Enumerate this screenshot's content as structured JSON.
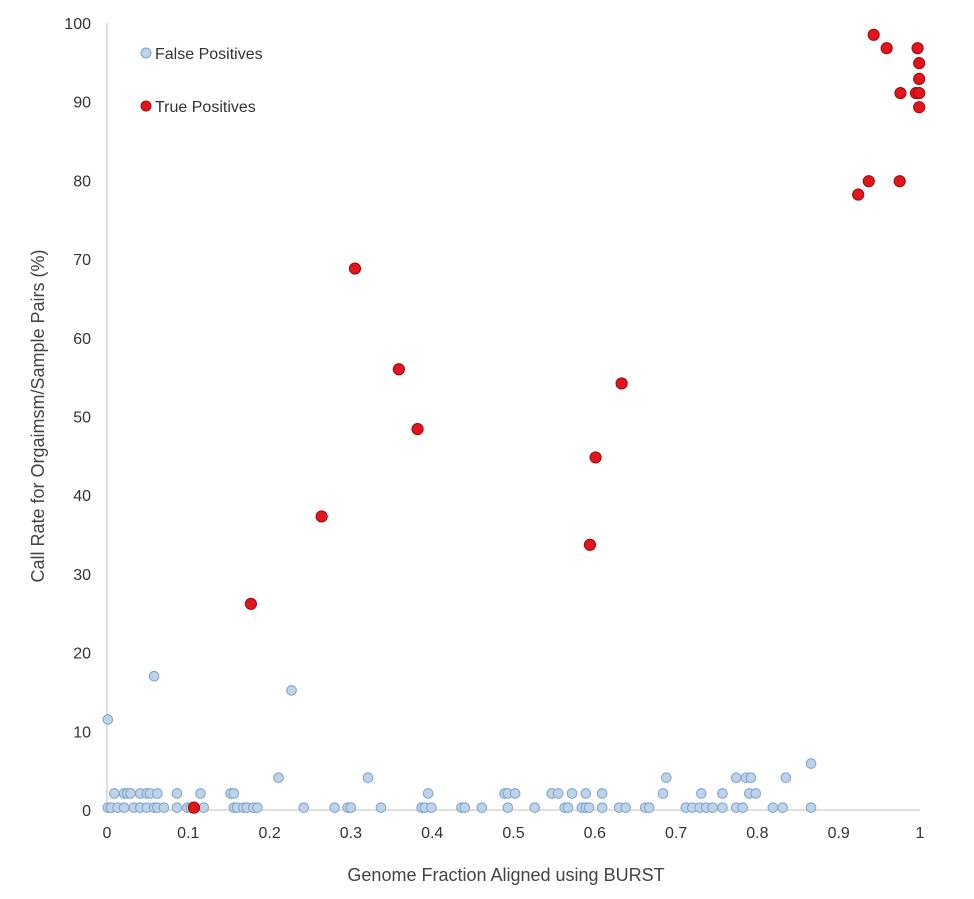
{
  "chart_data": {
    "type": "scatter",
    "xlabel": "Genome Fraction Aligned using BURST",
    "ylabel": "Call Rate for Orgaimsm/Sample Pairs (%)",
    "xlim": [
      0,
      1
    ],
    "ylim": [
      0,
      100
    ],
    "x_ticks": [
      "0",
      "0.1",
      "0.2",
      "0.3",
      "0.4",
      "0.5",
      "0.6",
      "0.7",
      "0.8",
      "0.9",
      "1"
    ],
    "y_ticks": [
      "0",
      "10",
      "20",
      "30",
      "40",
      "50",
      "60",
      "70",
      "80",
      "90",
      "100"
    ],
    "grid": false,
    "legend_position": "top-left",
    "series": [
      {
        "name": "False Positives",
        "color": "#bcd3ea",
        "stroke": "#7fa3c6",
        "points": [
          [
            0.001,
            11.5
          ],
          [
            0.058,
            17.0
          ],
          [
            0.227,
            15.2
          ],
          [
            0.866,
            5.9
          ],
          [
            0.211,
            4.1
          ],
          [
            0.321,
            4.1
          ],
          [
            0.688,
            4.1
          ],
          [
            0.774,
            4.1
          ],
          [
            0.786,
            4.1
          ],
          [
            0.792,
            4.1
          ],
          [
            0.835,
            4.1
          ],
          [
            0.009,
            2.1
          ],
          [
            0.021,
            2.1
          ],
          [
            0.025,
            2.1
          ],
          [
            0.029,
            2.1
          ],
          [
            0.041,
            2.1
          ],
          [
            0.049,
            2.1
          ],
          [
            0.053,
            2.1
          ],
          [
            0.062,
            2.1
          ],
          [
            0.086,
            2.1
          ],
          [
            0.115,
            2.1
          ],
          [
            0.152,
            2.1
          ],
          [
            0.156,
            2.1
          ],
          [
            0.395,
            2.1
          ],
          [
            0.489,
            2.1
          ],
          [
            0.493,
            2.1
          ],
          [
            0.502,
            2.1
          ],
          [
            0.547,
            2.1
          ],
          [
            0.555,
            2.1
          ],
          [
            0.572,
            2.1
          ],
          [
            0.589,
            2.1
          ],
          [
            0.609,
            2.1
          ],
          [
            0.684,
            2.1
          ],
          [
            0.731,
            2.1
          ],
          [
            0.757,
            2.1
          ],
          [
            0.79,
            2.1
          ],
          [
            0.798,
            2.1
          ],
          [
            0.001,
            0.3
          ],
          [
            0.005,
            0.3
          ],
          [
            0.013,
            0.3
          ],
          [
            0.021,
            0.3
          ],
          [
            0.033,
            0.3
          ],
          [
            0.041,
            0.3
          ],
          [
            0.049,
            0.3
          ],
          [
            0.058,
            0.3
          ],
          [
            0.062,
            0.3
          ],
          [
            0.07,
            0.3
          ],
          [
            0.086,
            0.3
          ],
          [
            0.099,
            0.3
          ],
          [
            0.103,
            0.3
          ],
          [
            0.119,
            0.3
          ],
          [
            0.156,
            0.3
          ],
          [
            0.16,
            0.3
          ],
          [
            0.168,
            0.3
          ],
          [
            0.172,
            0.3
          ],
          [
            0.18,
            0.3
          ],
          [
            0.185,
            0.3
          ],
          [
            0.242,
            0.3
          ],
          [
            0.28,
            0.3
          ],
          [
            0.296,
            0.3
          ],
          [
            0.3,
            0.3
          ],
          [
            0.337,
            0.3
          ],
          [
            0.387,
            0.3
          ],
          [
            0.391,
            0.3
          ],
          [
            0.399,
            0.3
          ],
          [
            0.436,
            0.3
          ],
          [
            0.44,
            0.3
          ],
          [
            0.461,
            0.3
          ],
          [
            0.493,
            0.3
          ],
          [
            0.526,
            0.3
          ],
          [
            0.563,
            0.3
          ],
          [
            0.567,
            0.3
          ],
          [
            0.584,
            0.3
          ],
          [
            0.589,
            0.3
          ],
          [
            0.593,
            0.3
          ],
          [
            0.609,
            0.3
          ],
          [
            0.63,
            0.3
          ],
          [
            0.638,
            0.3
          ],
          [
            0.662,
            0.3
          ],
          [
            0.667,
            0.3
          ],
          [
            0.712,
            0.3
          ],
          [
            0.72,
            0.3
          ],
          [
            0.729,
            0.3
          ],
          [
            0.737,
            0.3
          ],
          [
            0.745,
            0.3
          ],
          [
            0.757,
            0.3
          ],
          [
            0.774,
            0.3
          ],
          [
            0.782,
            0.3
          ],
          [
            0.819,
            0.3
          ],
          [
            0.831,
            0.3
          ],
          [
            0.866,
            0.3
          ]
        ]
      },
      {
        "name": "True Positives",
        "color": "#e3141b",
        "stroke": "#9a0b10",
        "points": [
          [
            0.107,
            0.3
          ],
          [
            0.177,
            26.2
          ],
          [
            0.264,
            37.3
          ],
          [
            0.305,
            68.8
          ],
          [
            0.359,
            56.0
          ],
          [
            0.382,
            48.4
          ],
          [
            0.594,
            33.7
          ],
          [
            0.601,
            44.8
          ],
          [
            0.633,
            54.2
          ],
          [
            0.924,
            78.2
          ],
          [
            0.937,
            79.9
          ],
          [
            0.943,
            98.5
          ],
          [
            0.959,
            96.8
          ],
          [
            0.975,
            79.9
          ],
          [
            0.976,
            91.1
          ],
          [
            0.995,
            91.1
          ],
          [
            0.997,
            96.8
          ],
          [
            0.999,
            94.9
          ],
          [
            0.999,
            92.9
          ],
          [
            0.999,
            91.1
          ],
          [
            0.999,
            89.3
          ]
        ]
      }
    ]
  }
}
